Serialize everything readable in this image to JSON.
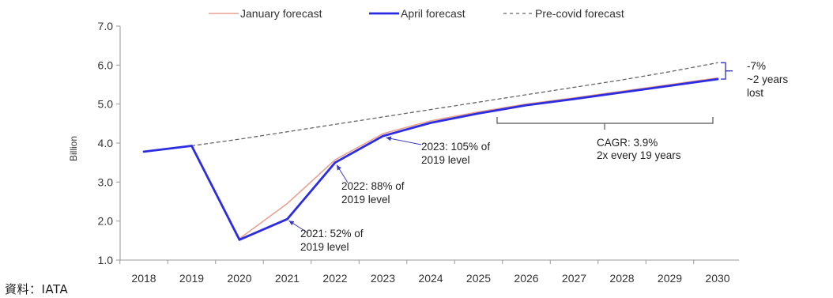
{
  "chart_data": {
    "type": "line",
    "title": "",
    "ylabel": "Billion",
    "xlabel": "",
    "categories": [
      "2018",
      "2019",
      "2020",
      "2021",
      "2022",
      "2023",
      "2024",
      "2025",
      "2026",
      "2027",
      "2028",
      "2029",
      "2030"
    ],
    "ylim": [
      1.0,
      7.0
    ],
    "yticks": [
      "1.0",
      "2.0",
      "3.0",
      "4.0",
      "5.0",
      "6.0",
      "7.0"
    ],
    "grid": false,
    "legend_position": "top",
    "series": [
      {
        "name": "January forecast",
        "color": "#e8a090",
        "style": "solid-thin",
        "values": [
          3.78,
          3.93,
          1.55,
          2.45,
          3.57,
          4.24,
          4.57,
          4.8,
          5.0,
          5.16,
          5.33,
          5.5,
          5.67
        ]
      },
      {
        "name": "April forecast",
        "color": "#2c2ce0",
        "style": "solid-thick",
        "values": [
          3.78,
          3.93,
          1.52,
          2.05,
          3.5,
          4.18,
          4.52,
          4.76,
          4.97,
          5.13,
          5.3,
          5.47,
          5.64
        ]
      },
      {
        "name": "Pre-covid forecast",
        "color": "#666666",
        "style": "dashed",
        "values": [
          null,
          3.93,
          4.1,
          4.29,
          4.48,
          4.67,
          4.86,
          5.05,
          5.24,
          5.43,
          5.62,
          5.83,
          6.06
        ]
      }
    ],
    "annotations": [
      {
        "id": "a2021",
        "lines": [
          "2021: 52% of",
          "2019 level"
        ],
        "x": "2021",
        "y": 2.05
      },
      {
        "id": "a2022",
        "lines": [
          "2022: 88% of",
          "2019 level"
        ],
        "x": "2022",
        "y": 3.5
      },
      {
        "id": "a2023",
        "lines": [
          "2023: 105% of",
          "2019 level"
        ],
        "x": "2023",
        "y": 4.18
      },
      {
        "id": "acagr",
        "lines": [
          "CAGR: 3.9%",
          "2x every 19 years"
        ]
      },
      {
        "id": "alost",
        "lines": [
          "-7%",
          "~2 years",
          "lost"
        ]
      }
    ]
  },
  "source": "資料：IATA"
}
